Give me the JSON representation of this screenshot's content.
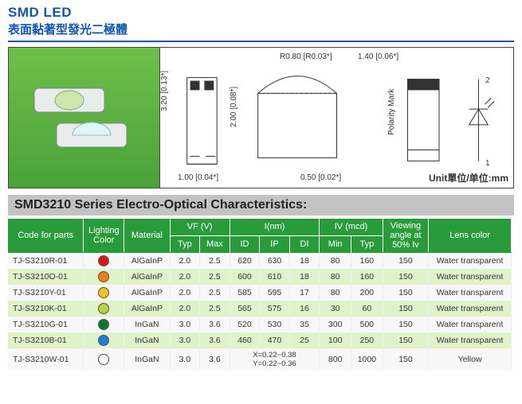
{
  "title": {
    "en": "SMD LED",
    "zh": "表面黏著型發光二極體"
  },
  "figure": {
    "photo_alt": "SMD LED product photo",
    "dims": {
      "r": "R0.80 [R0.03*]",
      "w_top": "1.40 [0.06*]",
      "h_side": "3.20 [0.13*]",
      "h_front": "2.00 [0.08*]",
      "w_bottom_left": "1.00 [0.04*]",
      "w_bottom_right": "0.50 [0.02*]",
      "polarity": "Polarity Mark",
      "pin1": "1",
      "pin2": "2"
    },
    "unit": "Unit單位/单位:mm"
  },
  "section_title": "SMD3210    Series  Electro-Optical Characteristics:",
  "headers": {
    "code": "Code for parts",
    "color": "Lighting Color",
    "material": "Material",
    "vf": "VF (V)",
    "vf_typ": "Typ",
    "vf_max": "Max",
    "wl": "I(nm)",
    "wl_id": "ID",
    "wl_ip": "IP",
    "wl_di": "DI",
    "iv": "IV (mcd)",
    "iv_min": "Min",
    "iv_typ": "Typ",
    "angle": "Viewing angle at 50% Iv",
    "lens": "Lens color"
  },
  "rows": [
    {
      "code": "TJ-S3210R-01",
      "swatch": "#d4181e",
      "material": "AlGaInP",
      "vf_typ": "2.0",
      "vf_max": "2.5",
      "id": "620",
      "ip": "630",
      "di": "18",
      "iv_min": "80",
      "iv_typ": "160",
      "angle": "150",
      "lens": "Water transparent"
    },
    {
      "code": "TJ-S3210O-01",
      "swatch": "#f07c1a",
      "material": "AlGaInP",
      "vf_typ": "2.0",
      "vf_max": "2.5",
      "id": "600",
      "ip": "610",
      "di": "18",
      "iv_min": "80",
      "iv_typ": "160",
      "angle": "150",
      "lens": "Water transparent"
    },
    {
      "code": "TJ-S3210Y-01",
      "swatch": "#f2c21a",
      "material": "AlGaInP",
      "vf_typ": "2.0",
      "vf_max": "2.5",
      "id": "585",
      "ip": "595",
      "di": "17",
      "iv_min": "80",
      "iv_typ": "200",
      "angle": "150",
      "lens": "Water transparent"
    },
    {
      "code": "TJ-S3210K-01",
      "swatch": "#b7d43a",
      "material": "AlGaInP",
      "vf_typ": "2.0",
      "vf_max": "2.5",
      "id": "565",
      "ip": "575",
      "di": "16",
      "iv_min": "30",
      "iv_typ": "60",
      "angle": "150",
      "lens": "Water transparent"
    },
    {
      "code": "TJ-S3210G-01",
      "swatch": "#0a7a2a",
      "material": "InGaN",
      "vf_typ": "3.0",
      "vf_max": "3.6",
      "id": "520",
      "ip": "530",
      "di": "35",
      "iv_min": "300",
      "iv_typ": "500",
      "angle": "150",
      "lens": "Water transparent"
    },
    {
      "code": "TJ-S3210B-01",
      "swatch": "#1e7fd6",
      "material": "InGaN",
      "vf_typ": "3.0",
      "vf_max": "3.6",
      "id": "460",
      "ip": "470",
      "di": "25",
      "iv_min": "100",
      "iv_typ": "250",
      "angle": "150",
      "lens": "Water transparent"
    },
    {
      "code": "TJ-S3210W-01",
      "swatch": "#ffffff",
      "material": "InGaN",
      "vf_typ": "3.0",
      "vf_max": "3.6",
      "id_ip_di": "X=0.22~0.38\nY=0.22~0.36",
      "iv_min": "800",
      "iv_typ": "1000",
      "angle": "150",
      "lens": "Yellow"
    }
  ]
}
